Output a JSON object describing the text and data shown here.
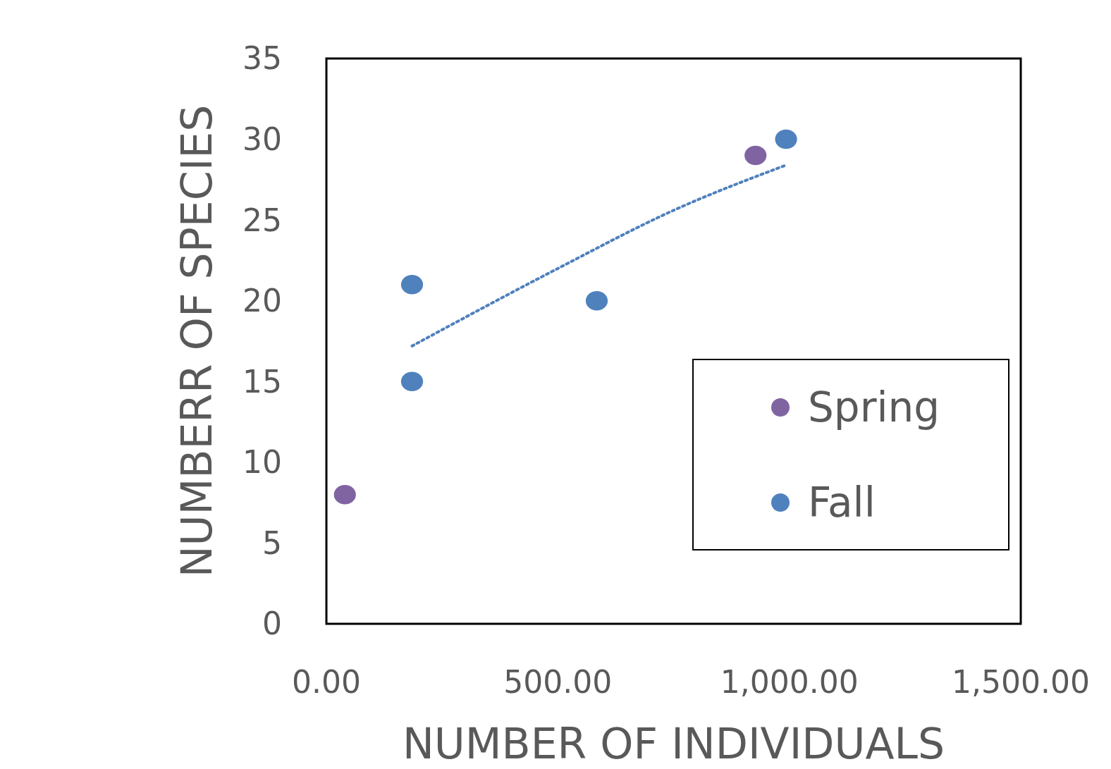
{
  "chart_data": {
    "type": "scatter",
    "xlabel": "NUMBER OF INDIVIDUALS",
    "ylabel": "NUMBERR OF SPECIES",
    "xlim": [
      0,
      1500
    ],
    "xticks": [
      {
        "value": 0,
        "label": "0.00"
      },
      {
        "value": 500,
        "label": "500.00"
      },
      {
        "value": 1000,
        "label": "1,000.00"
      },
      {
        "value": 1500,
        "label": "1,500.00"
      }
    ],
    "ylim": [
      0,
      35
    ],
    "yticks": [
      0,
      5,
      10,
      15,
      20,
      25,
      30,
      35
    ],
    "grid": false,
    "legend": "bottom right",
    "series": [
      {
        "name": "Spring",
        "marker": "circle",
        "color": "#8064a2",
        "x": [
          40,
          927
        ],
        "values": [
          8,
          29
        ]
      },
      {
        "name": "Fall",
        "marker": "circle",
        "color": "#4f81bd",
        "x": [
          185,
          185,
          584,
          993
        ],
        "values": [
          21,
          15,
          20,
          30
        ]
      },
      {
        "type": "line",
        "line_style": "dotted",
        "color": "#4f81bd",
        "x": [
          185,
          500,
          750,
          993
        ],
        "values": [
          17.2,
          22.0,
          25.6,
          28.4
        ]
      }
    ]
  }
}
